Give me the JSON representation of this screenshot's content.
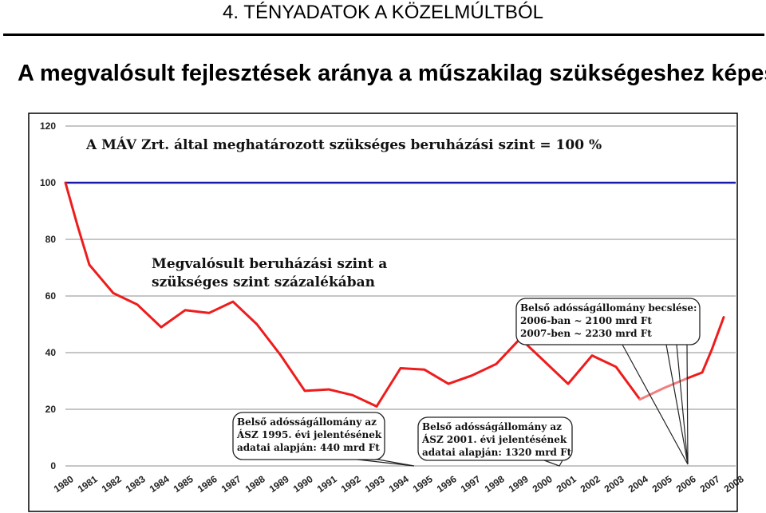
{
  "slide": {
    "heading": "4. TÉNYADATOK A KÖZELMÚLTBÓL",
    "subtitle": "A megvalósult fejlesztések aránya a műszakilag szükségeshez képest"
  },
  "chart_data": {
    "type": "line",
    "title": "",
    "xlabel": "",
    "ylabel": "",
    "ylim": [
      0,
      120
    ],
    "yticks": [
      "0",
      "20",
      "40",
      "60",
      "80",
      "100",
      "120"
    ],
    "categories": [
      "1980",
      "1981",
      "1982",
      "1983",
      "1984",
      "1985",
      "1986",
      "1987",
      "1988",
      "1989",
      "1990",
      "1991",
      "1992",
      "1993",
      "1994",
      "1995",
      "1996",
      "1997",
      "1998",
      "1999",
      "2000",
      "2001",
      "2002",
      "2003",
      "2004",
      "2005",
      "2006",
      "2007",
      "2008"
    ],
    "grid": "horizontal",
    "reference_line": {
      "value": 100,
      "color": "#1a1aa6",
      "label": "A MÁV Zrt. által meghatározott szükséges beruházási szint = 100 %"
    },
    "series_label": [
      "Megvalósult beruházási szint a",
      "szükséges szint százalékában"
    ],
    "series": [
      {
        "color": "#ee1c1c",
        "x": [
          1980,
          1980.5,
          1981,
          1982,
          1983,
          1984,
          1985,
          1986,
          1987,
          1988,
          1989,
          1990,
          1991,
          1992,
          1993,
          1994,
          1995,
          1996,
          1997,
          1998,
          1999,
          2000,
          2001,
          2002,
          2003,
          2004
        ],
        "values": [
          100,
          85,
          71,
          61,
          57,
          49,
          55,
          54,
          58,
          50,
          39,
          26.5,
          27,
          25,
          21,
          34.5,
          34,
          29,
          32,
          36,
          45,
          37,
          29,
          39,
          35,
          23.5
        ]
      },
      {
        "color": "#f08080",
        "x": [
          2004,
          2005,
          2006
        ],
        "values": [
          23.5,
          27.5,
          31
        ]
      },
      {
        "color": "#ee1c1c",
        "x": [
          2006,
          2006.6,
          2007,
          2007.5
        ],
        "values": [
          31,
          33,
          41,
          52.5
        ]
      }
    ],
    "callouts": [
      {
        "lines": [
          "Belső adósságállomány az",
          "ÁSZ 1995. évi jelentésének",
          "adatai alapján: 440 mrd Ft"
        ]
      },
      {
        "lines": [
          "Belső adósságállomány az",
          "ÁSZ 2001. évi jelentésének",
          "adatai alapján: 1320 mrd Ft"
        ]
      },
      {
        "lines": [
          "Belső adósságállomány becslése:",
          "2006-ban ~ 2100 mrd Ft",
          "2007-ben ~ 2230 mrd Ft"
        ]
      }
    ]
  }
}
